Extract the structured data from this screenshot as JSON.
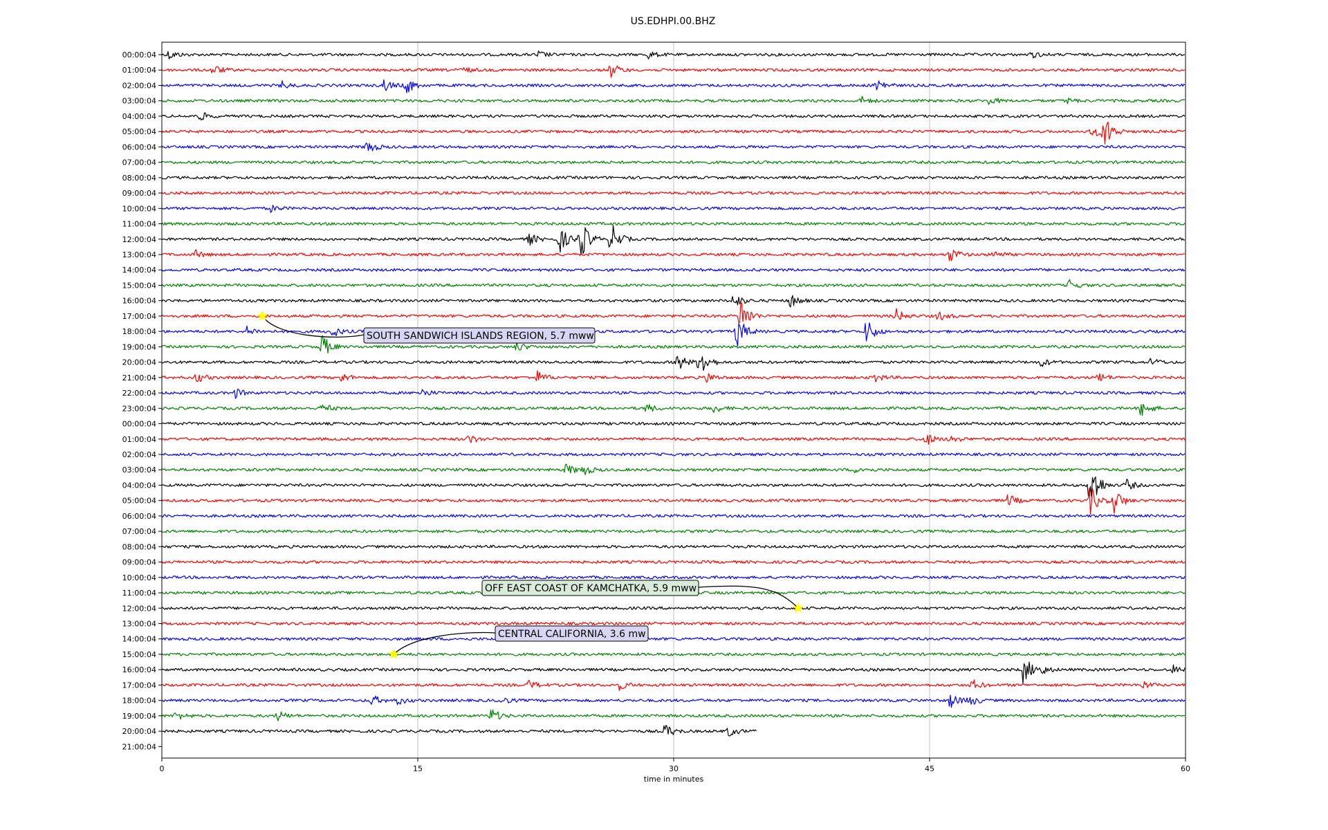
{
  "chart_data": {
    "type": "line",
    "title": "US.EDHPI.00.BHZ",
    "xlabel": "time in minutes",
    "ylabel": "",
    "xlim": [
      0,
      60
    ],
    "x_ticks": [
      0,
      15,
      30,
      45,
      60
    ],
    "x_tick_labels": [
      "0",
      "15",
      "30",
      "45",
      "60"
    ],
    "grid": "vertical lines at x ticks",
    "line_colors": [
      "#000000",
      "#ff0000",
      "#0000ff",
      "#008000"
    ],
    "rows": [
      {
        "label": "00:00:04",
        "end_minute": 60,
        "events": [
          {
            "x": 0.4,
            "amp": 0.3
          },
          {
            "x": 22.0,
            "amp": 0.25
          },
          {
            "x": 28.5,
            "amp": 0.25
          },
          {
            "x": 51.0,
            "amp": 0.2
          }
        ]
      },
      {
        "label": "01:00:04",
        "end_minute": 60,
        "events": [
          {
            "x": 3.0,
            "amp": 0.35
          },
          {
            "x": 26.3,
            "amp": 0.5
          },
          {
            "x": 17.6,
            "amp": 0.2
          }
        ]
      },
      {
        "label": "02:00:04",
        "end_minute": 60,
        "events": [
          {
            "x": 7.0,
            "amp": 0.25
          },
          {
            "x": 13.0,
            "amp": 0.4
          },
          {
            "x": 14.3,
            "amp": 0.6
          },
          {
            "x": 41.9,
            "amp": 0.5
          }
        ]
      },
      {
        "label": "03:00:04",
        "end_minute": 60,
        "events": [
          {
            "x": 41.0,
            "amp": 0.25
          },
          {
            "x": 48.5,
            "amp": 0.25
          },
          {
            "x": 53.0,
            "amp": 0.2
          }
        ]
      },
      {
        "label": "04:00:04",
        "end_minute": 60,
        "events": [
          {
            "x": 2.2,
            "amp": 0.3
          }
        ]
      },
      {
        "label": "05:00:04",
        "end_minute": 60,
        "events": [
          {
            "x": 54.5,
            "amp": 0.4
          },
          {
            "x": 55.2,
            "amp": 1.2
          }
        ]
      },
      {
        "label": "06:00:04",
        "end_minute": 60,
        "events": [
          {
            "x": 12.0,
            "amp": 0.5
          }
        ]
      },
      {
        "label": "07:00:04",
        "end_minute": 60,
        "events": []
      },
      {
        "label": "08:00:04",
        "end_minute": 60,
        "events": []
      },
      {
        "label": "09:00:04",
        "end_minute": 60,
        "events": []
      },
      {
        "label": "10:00:04",
        "end_minute": 60,
        "events": [
          {
            "x": 6.4,
            "amp": 0.2
          }
        ]
      },
      {
        "label": "11:00:04",
        "end_minute": 60,
        "events": []
      },
      {
        "label": "12:00:04",
        "end_minute": 60,
        "events": [
          {
            "x": 21.5,
            "amp": 0.4
          },
          {
            "x": 23.3,
            "amp": 0.9
          },
          {
            "x": 24.5,
            "amp": 1.5
          },
          {
            "x": 26.3,
            "amp": 1.2
          }
        ]
      },
      {
        "label": "13:00:04",
        "end_minute": 60,
        "events": [
          {
            "x": 2.0,
            "amp": 0.25
          },
          {
            "x": 46.2,
            "amp": 0.5
          },
          {
            "x": 48.7,
            "amp": 0.25
          }
        ]
      },
      {
        "label": "14:00:04",
        "end_minute": 60,
        "events": []
      },
      {
        "label": "15:00:04",
        "end_minute": 60,
        "events": [
          {
            "x": 53.2,
            "amp": 0.35
          }
        ]
      },
      {
        "label": "16:00:04",
        "end_minute": 60,
        "events": [
          {
            "x": 33.5,
            "amp": 0.5
          },
          {
            "x": 36.8,
            "amp": 0.5
          }
        ]
      },
      {
        "label": "17:00:04",
        "end_minute": 60,
        "events": [
          {
            "x": 33.9,
            "amp": 1.3
          },
          {
            "x": 43.0,
            "amp": 0.5
          },
          {
            "x": 45.5,
            "amp": 0.3
          }
        ]
      },
      {
        "label": "18:00:04",
        "end_minute": 60,
        "events": [
          {
            "x": 5.0,
            "amp": 0.3
          },
          {
            "x": 10.0,
            "amp": 0.35
          },
          {
            "x": 33.7,
            "amp": 1.1
          },
          {
            "x": 41.3,
            "amp": 0.9
          }
        ]
      },
      {
        "label": "19:00:04",
        "end_minute": 60,
        "events": [
          {
            "x": 9.3,
            "amp": 1.0
          },
          {
            "x": 20.8,
            "amp": 0.3
          }
        ]
      },
      {
        "label": "20:00:04",
        "end_minute": 60,
        "events": [
          {
            "x": 30.2,
            "amp": 0.6
          },
          {
            "x": 31.5,
            "amp": 1.2
          },
          {
            "x": 51.5,
            "amp": 0.3
          },
          {
            "x": 58.0,
            "amp": 0.25
          }
        ]
      },
      {
        "label": "21:00:04",
        "end_minute": 60,
        "events": [
          {
            "x": 2.0,
            "amp": 0.35
          },
          {
            "x": 10.5,
            "amp": 0.3
          },
          {
            "x": 22.0,
            "amp": 0.4
          },
          {
            "x": 31.9,
            "amp": 0.35
          },
          {
            "x": 41.7,
            "amp": 0.35
          },
          {
            "x": 54.9,
            "amp": 0.3
          }
        ]
      },
      {
        "label": "22:00:04",
        "end_minute": 60,
        "events": [
          {
            "x": 4.3,
            "amp": 0.3
          },
          {
            "x": 15.2,
            "amp": 0.3
          }
        ]
      },
      {
        "label": "23:00:04",
        "end_minute": 60,
        "events": [
          {
            "x": 9.4,
            "amp": 0.3
          },
          {
            "x": 28.4,
            "amp": 0.3
          },
          {
            "x": 32.3,
            "amp": 0.3
          },
          {
            "x": 57.4,
            "amp": 0.6
          }
        ]
      },
      {
        "label": "00:00:04",
        "end_minute": 60,
        "events": []
      },
      {
        "label": "01:00:04",
        "end_minute": 60,
        "events": [
          {
            "x": 18.0,
            "amp": 0.3
          },
          {
            "x": 44.7,
            "amp": 0.5
          },
          {
            "x": 46.2,
            "amp": 0.3
          }
        ]
      },
      {
        "label": "02:00:04",
        "end_minute": 60,
        "events": []
      },
      {
        "label": "03:00:04",
        "end_minute": 60,
        "events": [
          {
            "x": 23.7,
            "amp": 0.4
          },
          {
            "x": 24.7,
            "amp": 0.35
          },
          {
            "x": 40.7,
            "amp": 0.25
          }
        ]
      },
      {
        "label": "04:00:04",
        "end_minute": 60,
        "events": [
          {
            "x": 54.4,
            "amp": 2.0
          },
          {
            "x": 56.5,
            "amp": 0.4
          }
        ]
      },
      {
        "label": "05:00:04",
        "end_minute": 60,
        "events": [
          {
            "x": 49.6,
            "amp": 0.4
          },
          {
            "x": 54.4,
            "amp": 1.0
          },
          {
            "x": 55.8,
            "amp": 0.9
          }
        ]
      },
      {
        "label": "06:00:04",
        "end_minute": 60,
        "events": []
      },
      {
        "label": "07:00:04",
        "end_minute": 60,
        "events": []
      },
      {
        "label": "08:00:04",
        "end_minute": 60,
        "events": []
      },
      {
        "label": "09:00:04",
        "end_minute": 60,
        "events": []
      },
      {
        "label": "10:00:04",
        "end_minute": 60,
        "events": []
      },
      {
        "label": "11:00:04",
        "end_minute": 60,
        "events": []
      },
      {
        "label": "12:00:04",
        "end_minute": 60,
        "events": []
      },
      {
        "label": "13:00:04",
        "end_minute": 60,
        "events": []
      },
      {
        "label": "14:00:04",
        "end_minute": 60,
        "events": []
      },
      {
        "label": "15:00:04",
        "end_minute": 60,
        "events": []
      },
      {
        "label": "16:00:04",
        "end_minute": 60,
        "events": [
          {
            "x": 50.5,
            "amp": 1.0
          },
          {
            "x": 51.5,
            "amp": 0.35
          },
          {
            "x": 59.2,
            "amp": 0.3
          }
        ]
      },
      {
        "label": "17:00:04",
        "end_minute": 60,
        "events": [
          {
            "x": 21.5,
            "amp": 0.3
          },
          {
            "x": 26.8,
            "amp": 0.3
          },
          {
            "x": 47.5,
            "amp": 0.35
          },
          {
            "x": 57.5,
            "amp": 0.25
          }
        ]
      },
      {
        "label": "18:00:04",
        "end_minute": 60,
        "events": [
          {
            "x": 12.3,
            "amp": 0.35
          },
          {
            "x": 13.8,
            "amp": 0.3
          },
          {
            "x": 19.8,
            "amp": 0.3
          },
          {
            "x": 46.2,
            "amp": 0.5
          },
          {
            "x": 47.3,
            "amp": 0.4
          }
        ]
      },
      {
        "label": "19:00:04",
        "end_minute": 60,
        "events": [
          {
            "x": 0.8,
            "amp": 0.3
          },
          {
            "x": 6.8,
            "amp": 0.3
          },
          {
            "x": 19.3,
            "amp": 0.5
          }
        ]
      },
      {
        "label": "20:00:04",
        "end_minute": 34.9,
        "events": [
          {
            "x": 29.5,
            "amp": 0.5
          },
          {
            "x": 33.2,
            "amp": 0.35
          }
        ]
      },
      {
        "label": "21:00:04",
        "end_minute": 0,
        "events": []
      }
    ],
    "annotations": [
      {
        "text": "SOUTH SANDWICH ISLANDS REGION, 5.7 mww",
        "x": 5.9,
        "row": 17,
        "box_color": "#d6d6f2"
      },
      {
        "text": "OFF EAST COAST OF KAMCHATKA, 5.9 mww",
        "x": 37.3,
        "row": 36,
        "box_color": "#d9ecd9"
      },
      {
        "text": "CENTRAL CALIFORNIA, 3.6 mw",
        "x": 13.6,
        "row": 39,
        "box_color": "#d6d6f2"
      }
    ]
  }
}
